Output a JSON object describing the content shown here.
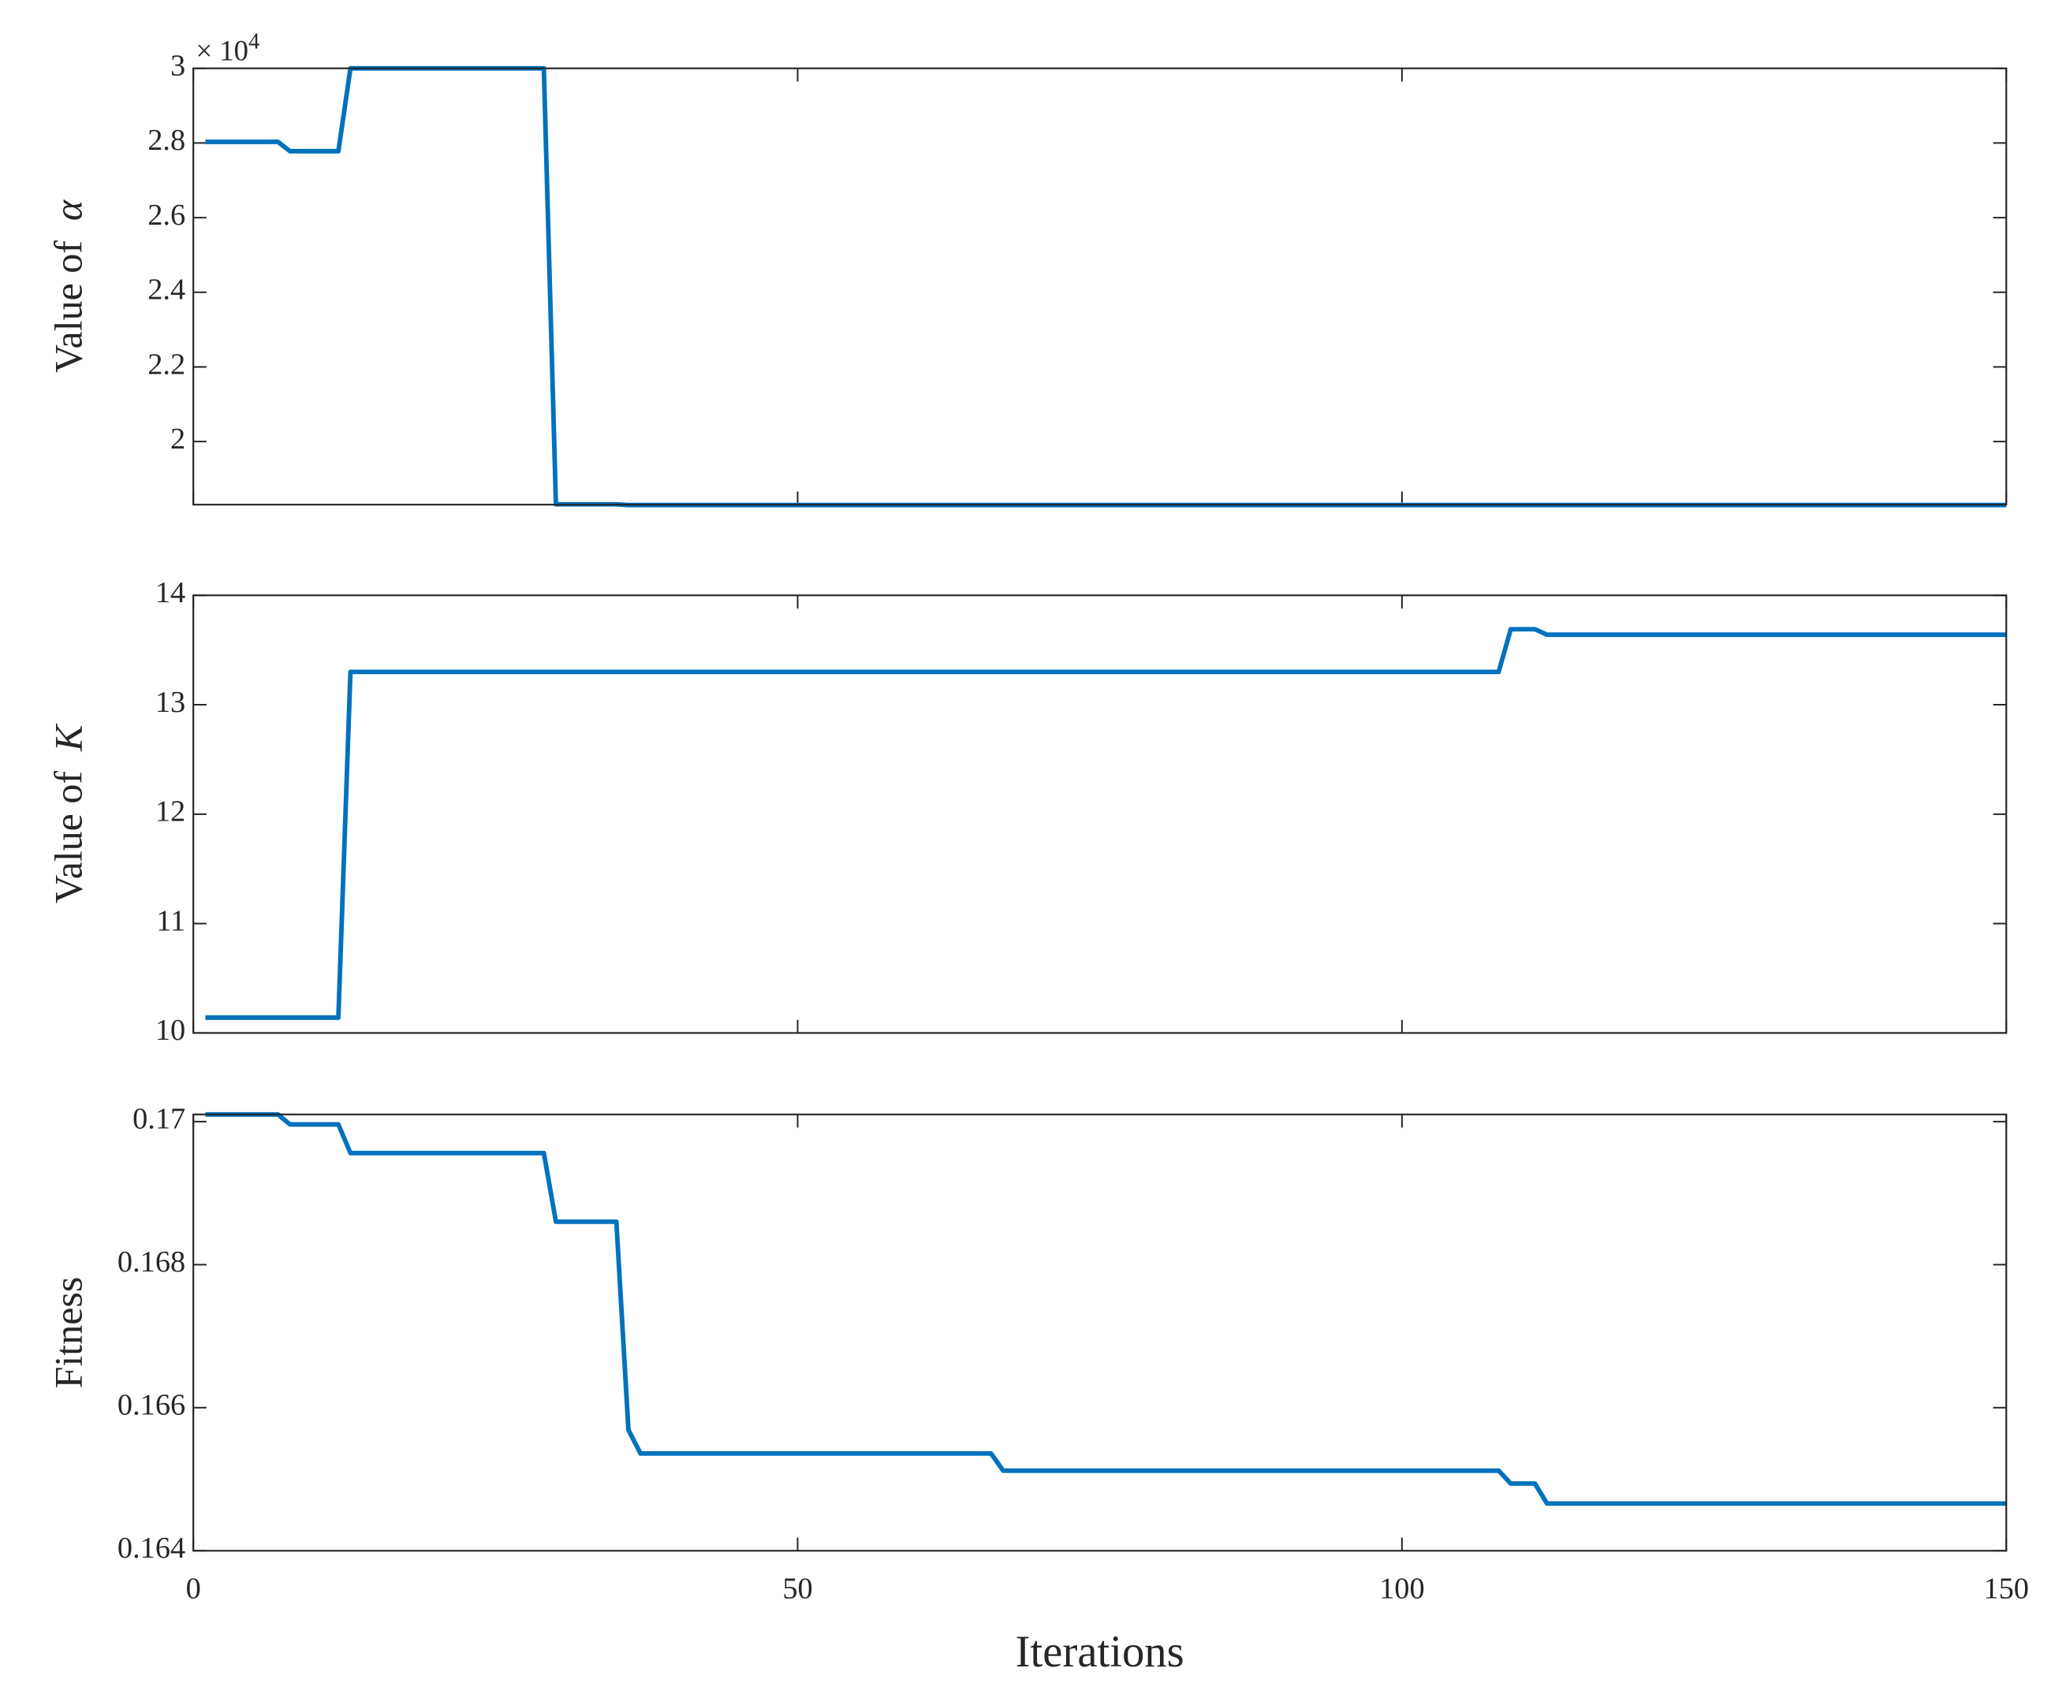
{
  "chart_data": [
    {
      "type": "line",
      "ylabel": "Value of",
      "ylabel_symbol": "α",
      "offset_label": "× 10",
      "offset_power": "4",
      "color": "#0072bd",
      "x": [
        1,
        7,
        8,
        12,
        13,
        29,
        30,
        35,
        36,
        150
      ],
      "values": [
        2.803,
        2.803,
        2.778,
        2.778,
        3.0,
        3.0,
        1.832,
        1.832,
        1.83,
        1.83
      ],
      "xlim": [
        0,
        150
      ],
      "xticks": [
        0,
        50,
        100,
        150
      ],
      "ylim": [
        1.831,
        3
      ],
      "yticks": [
        2,
        2.2,
        2.4,
        2.6,
        2.8,
        3
      ]
    },
    {
      "type": "line",
      "ylabel": "Value of",
      "ylabel_symbol": "K",
      "color": "#0072bd",
      "x": [
        1,
        12,
        13,
        108,
        109,
        111,
        112,
        150
      ],
      "values": [
        10.14,
        10.14,
        13.3,
        13.3,
        13.69,
        13.69,
        13.64,
        13.64
      ],
      "xlim": [
        0,
        150
      ],
      "xticks": [
        0,
        50,
        100,
        150
      ],
      "ylim": [
        10,
        14
      ],
      "yticks": [
        10,
        11,
        12,
        13,
        14
      ]
    },
    {
      "type": "line",
      "ylabel": "Fitness",
      "xlabel": "Iterations",
      "color": "#0072bd",
      "x": [
        1,
        7,
        8,
        12,
        13,
        29,
        30,
        35,
        36,
        37,
        66,
        67,
        108,
        109,
        111,
        112,
        150
      ],
      "values": [
        0.1701,
        0.1701,
        0.16996,
        0.16996,
        0.16956,
        0.16956,
        0.1686,
        0.1686,
        0.16569,
        0.16536,
        0.16536,
        0.16512,
        0.16512,
        0.16494,
        0.16494,
        0.16466,
        0.16466
      ],
      "xlim": [
        0,
        150
      ],
      "xticks": [
        0,
        50,
        100,
        150
      ],
      "ylim": [
        0.164,
        0.1701
      ],
      "yticks": [
        0.164,
        0.166,
        0.168,
        0.17
      ]
    }
  ]
}
